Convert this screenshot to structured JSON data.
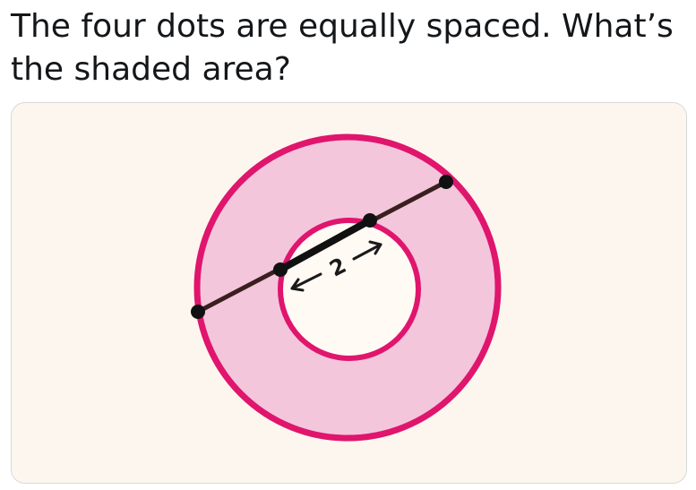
{
  "question": {
    "line1": "The four dots are equally spaced. What’s",
    "line2": "the shaded area?"
  },
  "figure": {
    "inner_segment_label": "2",
    "colors": {
      "background": "#fdf6ee",
      "ring_fill": "#f3c6dc",
      "ring_stroke": "#e0156d",
      "inner_fill": "#fffaf4",
      "line": "#3a1f1f",
      "dot": "#111111"
    }
  }
}
